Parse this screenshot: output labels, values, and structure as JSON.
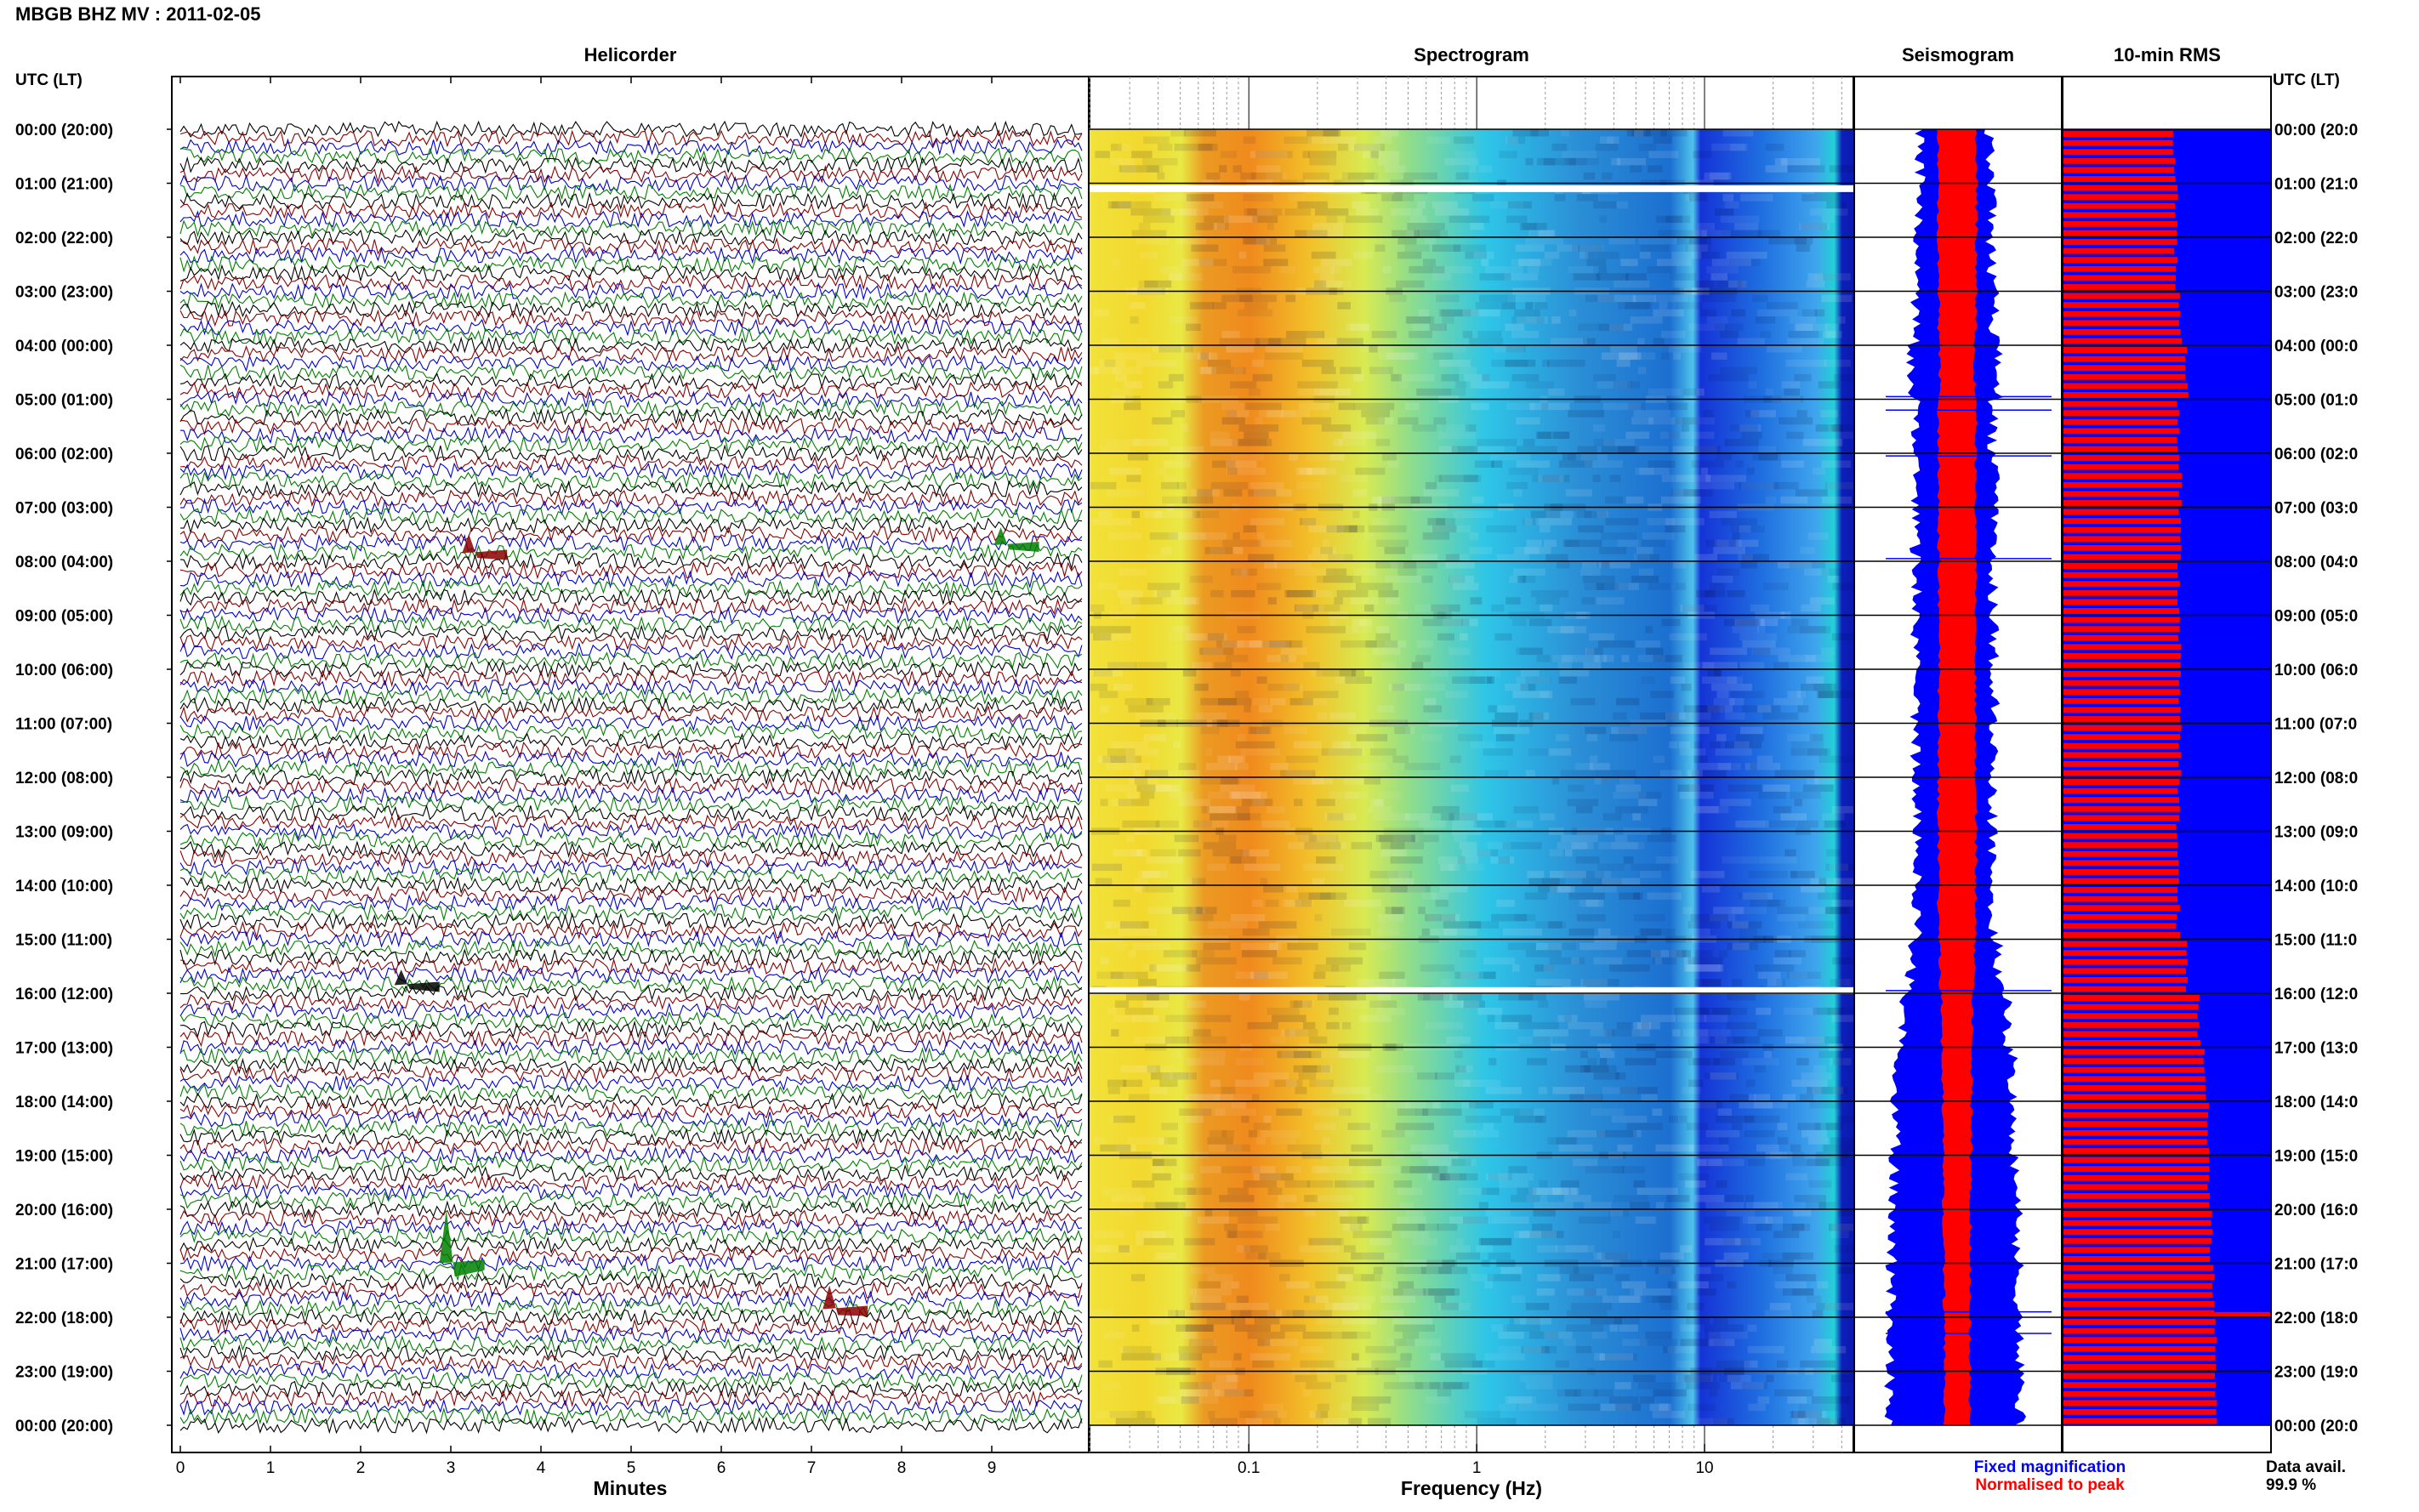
{
  "header": {
    "title": "MBGB BHZ MV : 2011-02-05",
    "left_axis_label": "UTC (LT)",
    "right_axis_label": "UTC (LT)"
  },
  "panels": {
    "helicorder": "Helicorder",
    "spectrogram": "Spectrogram",
    "seismogram": "Seismogram",
    "rms": "10-min RMS"
  },
  "time_labels": [
    "00:00 (20:00)",
    "01:00 (21:00)",
    "02:00 (22:00)",
    "03:00 (23:00)",
    "04:00 (00:00)",
    "05:00 (01:00)",
    "06:00 (02:00)",
    "07:00 (03:00)",
    "08:00 (04:00)",
    "09:00 (05:00)",
    "10:00 (06:00)",
    "11:00 (07:00)",
    "12:00 (08:00)",
    "13:00 (09:00)",
    "14:00 (10:00)",
    "15:00 (11:00)",
    "16:00 (12:00)",
    "17:00 (13:00)",
    "18:00 (14:00)",
    "19:00 (15:00)",
    "20:00 (16:00)",
    "21:00 (17:00)",
    "22:00 (18:00)",
    "23:00 (19:00)",
    "00:00 (20:00)"
  ],
  "right_time_labels": [
    "00:00 (20:0",
    "01:00 (21:0",
    "02:00 (22:0",
    "03:00 (23:0",
    "04:00 (00:0",
    "05:00 (01:0",
    "06:00 (02:0",
    "07:00 (03:0",
    "08:00 (04:0",
    "09:00 (05:0",
    "10:00 (06:0",
    "11:00 (07:0",
    "12:00 (08:0",
    "13:00 (09:0",
    "14:00 (10:0",
    "15:00 (11:0",
    "16:00 (12:0",
    "17:00 (13:0",
    "18:00 (14:0",
    "19:00 (15:0",
    "20:00 (16:0",
    "21:00 (17:0",
    "22:00 (18:0",
    "23:00 (19:0",
    "00:00 (20:0"
  ],
  "helicorder": {
    "xlabel": "Minutes",
    "xticks": [
      "0",
      "1",
      "2",
      "3",
      "4",
      "5",
      "6",
      "7",
      "8",
      "9"
    ],
    "xlim": [
      0,
      10
    ],
    "trace_colors": [
      "#000000",
      "#8b0000",
      "#0000cd",
      "#008000"
    ],
    "traces_per_hour": 6,
    "events": [
      {
        "hour": 7.85,
        "minute": 3.2,
        "color": "#8b0000",
        "amp": 1.6
      },
      {
        "hour": 7.7,
        "minute": 9.1,
        "color": "#008000",
        "amp": 1.5
      },
      {
        "hour": 21.0,
        "minute": 2.95,
        "color": "#008000",
        "amp": 4.5
      },
      {
        "hour": 21.85,
        "minute": 7.2,
        "color": "#8b0000",
        "amp": 2.0
      },
      {
        "hour": 15.85,
        "minute": 2.45,
        "color": "#000000",
        "amp": 1.3
      }
    ]
  },
  "spectrogram": {
    "xlabel": "Frequency (Hz)",
    "xscale": "log",
    "xlim": [
      0.02,
      45
    ],
    "xticks": [
      "0.1",
      "1",
      "10"
    ],
    "data_gaps_hours": [
      1.1,
      15.95
    ]
  },
  "seismogram": {
    "legend_fixed": "Fixed magnification",
    "legend_normalised": "Normalised to peak",
    "fixed_color": "#0000ff",
    "normalised_color": "#ff0000"
  },
  "rms": {
    "fill_color": "#0000ff",
    "bar_color": "#ff0000"
  },
  "footer": {
    "data_avail_label": "Data avail.",
    "data_avail_value": "99.9 %"
  },
  "chart_data": [
    {
      "type": "line",
      "title": "Helicorder",
      "xlabel": "Minutes",
      "ylabel": "UTC (LT)",
      "xlim": [
        0,
        10
      ],
      "grid": false,
      "note_events": [
        {
          "time_utc": "07:50",
          "minute": 3.2
        },
        {
          "time_utc": "07:40",
          "minute": 9.1
        },
        {
          "time_utc": "21:00",
          "minute": 2.95
        },
        {
          "time_utc": "21:50",
          "minute": 7.2
        }
      ]
    },
    {
      "type": "heatmap",
      "title": "Spectrogram",
      "xlabel": "Frequency (Hz)",
      "xscale": "log",
      "xticks": [
        0.1,
        1,
        10
      ],
      "y_range_utc": [
        "00:00",
        "24:00"
      ]
    },
    {
      "type": "area",
      "title": "Seismogram",
      "series": [
        {
          "name": "Fixed magnification",
          "color": "#0000ff"
        },
        {
          "name": "Normalised to peak",
          "color": "#ff0000"
        }
      ]
    },
    {
      "type": "bar",
      "title": "10-min RMS",
      "orientation": "horizontal",
      "interval_minutes": 10,
      "hourly_relative_rms": [
        0.53,
        0.54,
        0.54,
        0.56,
        0.59,
        0.55,
        0.56,
        0.56,
        0.55,
        0.56,
        0.56,
        0.56,
        0.55,
        0.55,
        0.55,
        0.59,
        0.65,
        0.68,
        0.69,
        0.7,
        0.71,
        0.72,
        0.73,
        0.73
      ]
    }
  ]
}
